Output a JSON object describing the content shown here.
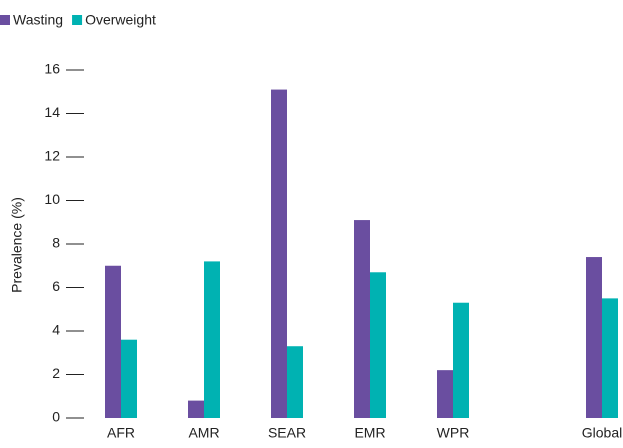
{
  "chart_data": {
    "type": "bar",
    "y_label": "Prevalence (%)",
    "categories": [
      "AFR",
      "AMR",
      "SEAR",
      "EMR",
      "WPR",
      "Global"
    ],
    "series": [
      {
        "name": "Wasting",
        "color": "#6a4ea0",
        "values": [
          7.0,
          0.8,
          15.1,
          9.1,
          2.2,
          7.4
        ]
      },
      {
        "name": "Overweight",
        "color": "#00b2b2",
        "values": [
          3.6,
          7.2,
          3.3,
          6.7,
          5.3,
          5.5
        ]
      }
    ],
    "ylim": [
      0,
      16
    ],
    "yticks": [
      0,
      2,
      4,
      6,
      8,
      10,
      12,
      14,
      16
    ],
    "legend": "top-left"
  }
}
